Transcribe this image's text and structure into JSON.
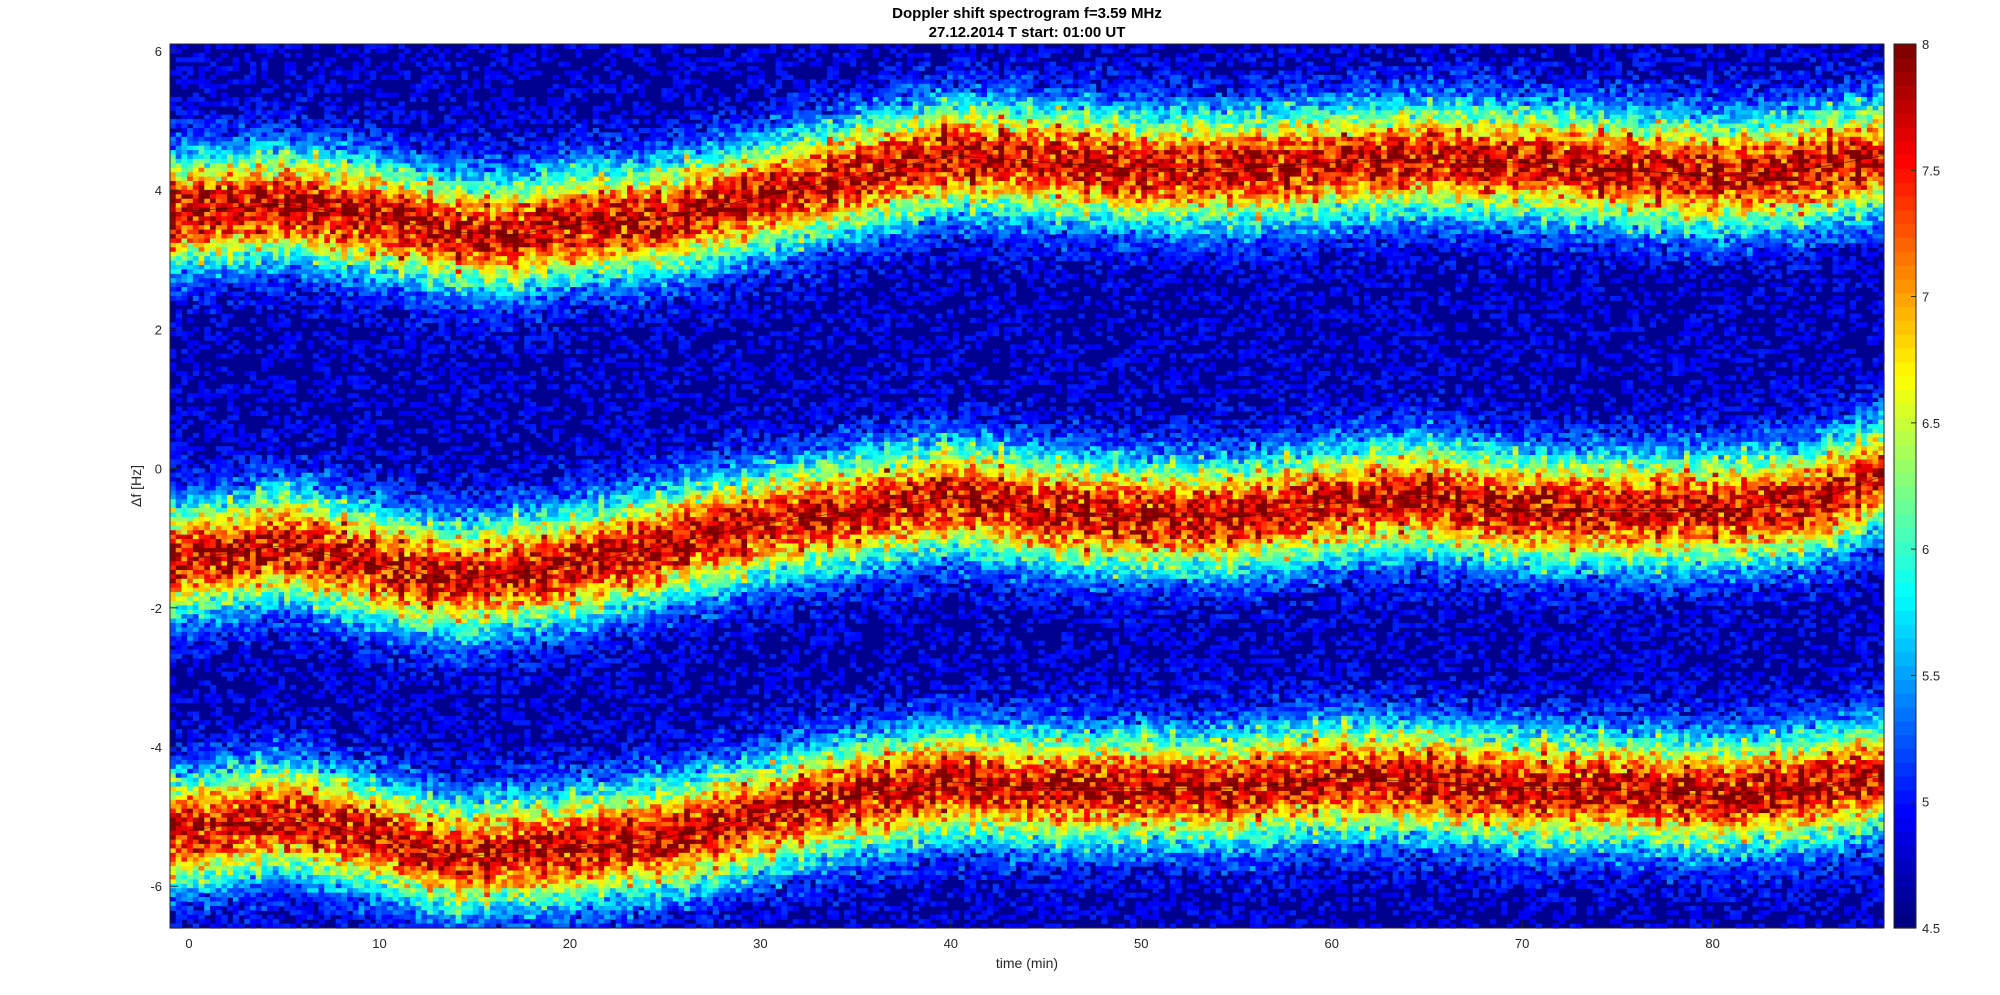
{
  "chart_data": {
    "type": "heatmap",
    "title": "Doppler shift spectrogram f=3.59 MHz",
    "subtitle": "27.12.2014   T start: 01:00 UT",
    "xlabel": "time (min)",
    "ylabel": "Δf [Hz]",
    "xlim": [
      -1,
      89
    ],
    "ylim": [
      -6.6,
      6.1
    ],
    "x_ticks": [
      0,
      10,
      20,
      30,
      40,
      50,
      60,
      70,
      80
    ],
    "y_ticks": [
      -6,
      -4,
      -2,
      0,
      2,
      4,
      6
    ],
    "colorbar": {
      "colormap": "jet",
      "range": [
        4.5,
        8
      ],
      "ticks": [
        "4.5",
        "5",
        "5.5",
        "6",
        "6.5",
        "7",
        "7.5",
        "8"
      ]
    },
    "series": [
      {
        "x": [
          0,
          5,
          10,
          14,
          17,
          20,
          25,
          30,
          35,
          40,
          45,
          50,
          55,
          60,
          65,
          70,
          75,
          80,
          85,
          89
        ],
        "y": [
          3.7,
          3.8,
          3.6,
          3.4,
          3.35,
          3.5,
          3.6,
          3.9,
          4.2,
          4.5,
          4.4,
          4.3,
          4.3,
          4.4,
          4.45,
          4.4,
          4.3,
          4.2,
          4.3,
          4.5
        ]
      },
      {
        "x": [
          0,
          5,
          10,
          14,
          17,
          20,
          25,
          30,
          35,
          40,
          45,
          50,
          55,
          60,
          65,
          70,
          75,
          80,
          85,
          89
        ],
        "y": [
          -1.3,
          -1.1,
          -1.4,
          -1.6,
          -1.5,
          -1.4,
          -1.1,
          -0.8,
          -0.6,
          -0.4,
          -0.6,
          -0.7,
          -0.7,
          -0.5,
          -0.4,
          -0.6,
          -0.6,
          -0.6,
          -0.5,
          -0.1
        ]
      },
      {
        "x": [
          0,
          5,
          10,
          14,
          17,
          20,
          25,
          30,
          35,
          40,
          45,
          50,
          55,
          60,
          65,
          70,
          75,
          80,
          85,
          89
        ],
        "y": [
          -5.2,
          -5.0,
          -5.3,
          -5.6,
          -5.5,
          -5.45,
          -5.3,
          -5.0,
          -4.7,
          -4.5,
          -4.6,
          -4.6,
          -4.6,
          -4.45,
          -4.5,
          -4.6,
          -4.6,
          -4.7,
          -4.6,
          -4.4
        ]
      }
    ]
  }
}
